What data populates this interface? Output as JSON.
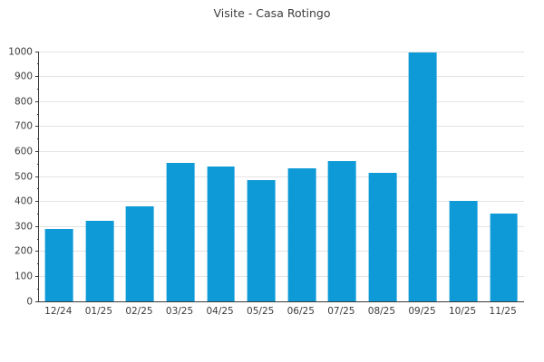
{
  "chart_data": {
    "type": "bar",
    "title": "Visite - Casa Rotingo",
    "categories": [
      "12/24",
      "01/25",
      "02/25",
      "03/25",
      "04/25",
      "05/25",
      "06/25",
      "07/25",
      "08/25",
      "09/25",
      "10/25",
      "11/25"
    ],
    "values": [
      290,
      323,
      382,
      553,
      540,
      487,
      532,
      561,
      516,
      995,
      404,
      351
    ],
    "xlabel": "",
    "ylabel": "",
    "ylim": [
      0,
      1000
    ],
    "ytick_step": 100,
    "minor_tick_step": 50,
    "grid": true,
    "legend": false,
    "bar_color": "#0d9ad7",
    "grid_color": "#e3e3e3",
    "axis_color": "#3a3a3a",
    "label_color": "#3c3c3c"
  }
}
